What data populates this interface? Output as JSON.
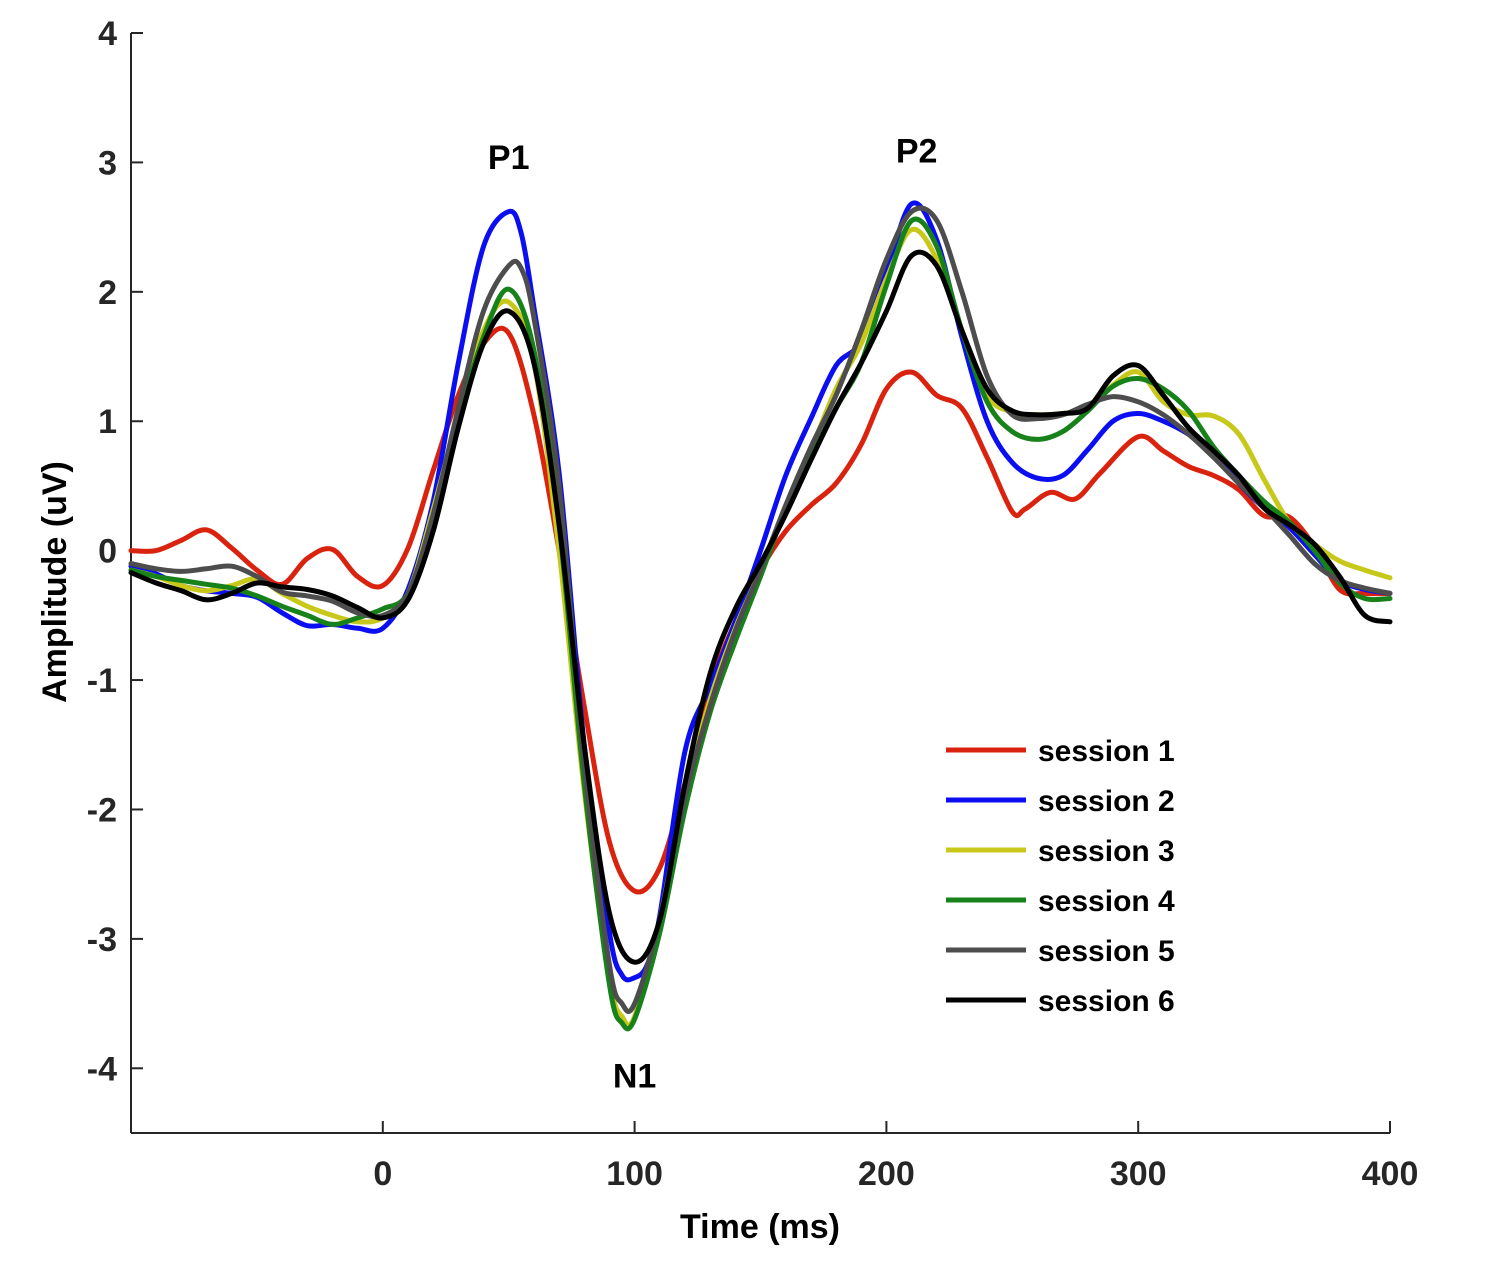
{
  "chart_data": {
    "type": "line",
    "xlabel": "Time (ms)",
    "ylabel": "Amplitude (uV)",
    "xlim": [
      -100,
      400
    ],
    "ylim": [
      -4.5,
      4
    ],
    "x_ticks": [
      0,
      100,
      200,
      300,
      400
    ],
    "y_ticks": [
      -4,
      -3,
      -2,
      -1,
      0,
      1,
      2,
      3,
      4
    ],
    "grid": false,
    "legend_position": "bottom-right",
    "annotations": [
      {
        "text": "P1",
        "x": 50,
        "y": 2.95
      },
      {
        "text": "P2",
        "x": 212,
        "y": 3.0
      },
      {
        "text": "N1",
        "x": 100,
        "y": -4.15
      }
    ],
    "series": [
      {
        "name": "session 1",
        "color": "#d9230f",
        "points": [
          [
            -100,
            0
          ],
          [
            -90,
            0
          ],
          [
            -80,
            0.08
          ],
          [
            -70,
            0.16
          ],
          [
            -60,
            0.02
          ],
          [
            -50,
            -0.15
          ],
          [
            -40,
            -0.26
          ],
          [
            -30,
            -0.06
          ],
          [
            -20,
            0.01
          ],
          [
            -10,
            -0.2
          ],
          [
            0,
            -0.27
          ],
          [
            10,
            0.02
          ],
          [
            20,
            0.62
          ],
          [
            30,
            1.2
          ],
          [
            40,
            1.6
          ],
          [
            50,
            1.68
          ],
          [
            60,
            1.05
          ],
          [
            70,
            0.0
          ],
          [
            80,
            -1.2
          ],
          [
            90,
            -2.25
          ],
          [
            100,
            -2.63
          ],
          [
            110,
            -2.45
          ],
          [
            120,
            -1.8
          ],
          [
            130,
            -1.05
          ],
          [
            140,
            -0.55
          ],
          [
            150,
            -0.15
          ],
          [
            160,
            0.15
          ],
          [
            170,
            0.35
          ],
          [
            180,
            0.52
          ],
          [
            190,
            0.82
          ],
          [
            200,
            1.25
          ],
          [
            210,
            1.38
          ],
          [
            220,
            1.2
          ],
          [
            230,
            1.1
          ],
          [
            240,
            0.72
          ],
          [
            250,
            0.3
          ],
          [
            255,
            0.32
          ],
          [
            265,
            0.45
          ],
          [
            275,
            0.4
          ],
          [
            285,
            0.6
          ],
          [
            300,
            0.88
          ],
          [
            310,
            0.77
          ],
          [
            320,
            0.65
          ],
          [
            330,
            0.58
          ],
          [
            340,
            0.47
          ],
          [
            350,
            0.27
          ],
          [
            360,
            0.26
          ],
          [
            370,
            0.03
          ],
          [
            380,
            -0.3
          ],
          [
            390,
            -0.33
          ],
          [
            400,
            -0.33
          ]
        ]
      },
      {
        "name": "session 2",
        "color": "#0b0ef0",
        "points": [
          [
            -100,
            -0.12
          ],
          [
            -90,
            -0.18
          ],
          [
            -80,
            -0.27
          ],
          [
            -70,
            -0.31
          ],
          [
            -60,
            -0.33
          ],
          [
            -50,
            -0.36
          ],
          [
            -40,
            -0.48
          ],
          [
            -30,
            -0.58
          ],
          [
            -20,
            -0.57
          ],
          [
            -10,
            -0.6
          ],
          [
            0,
            -0.6
          ],
          [
            10,
            -0.3
          ],
          [
            20,
            0.38
          ],
          [
            30,
            1.45
          ],
          [
            40,
            2.35
          ],
          [
            50,
            2.62
          ],
          [
            55,
            2.45
          ],
          [
            60,
            1.88
          ],
          [
            70,
            0.6
          ],
          [
            80,
            -1.5
          ],
          [
            90,
            -2.95
          ],
          [
            95,
            -3.28
          ],
          [
            100,
            -3.3
          ],
          [
            105,
            -3.2
          ],
          [
            110,
            -2.82
          ],
          [
            120,
            -1.55
          ],
          [
            130,
            -1.05
          ],
          [
            140,
            -0.55
          ],
          [
            150,
            0.0
          ],
          [
            160,
            0.58
          ],
          [
            170,
            1.02
          ],
          [
            180,
            1.43
          ],
          [
            190,
            1.62
          ],
          [
            200,
            2.15
          ],
          [
            210,
            2.68
          ],
          [
            220,
            2.4
          ],
          [
            230,
            1.65
          ],
          [
            240,
            1.0
          ],
          [
            250,
            0.68
          ],
          [
            260,
            0.56
          ],
          [
            270,
            0.58
          ],
          [
            280,
            0.78
          ],
          [
            290,
            1.0
          ],
          [
            300,
            1.06
          ],
          [
            310,
            1.0
          ],
          [
            320,
            0.9
          ],
          [
            330,
            0.76
          ],
          [
            340,
            0.52
          ],
          [
            350,
            0.33
          ],
          [
            360,
            0.18
          ],
          [
            370,
            -0.03
          ],
          [
            380,
            -0.23
          ],
          [
            390,
            -0.3
          ],
          [
            400,
            -0.33
          ]
        ]
      },
      {
        "name": "session 3",
        "color": "#c8c81a",
        "points": [
          [
            -100,
            -0.15
          ],
          [
            -90,
            -0.2
          ],
          [
            -80,
            -0.27
          ],
          [
            -70,
            -0.31
          ],
          [
            -60,
            -0.27
          ],
          [
            -50,
            -0.22
          ],
          [
            -40,
            -0.33
          ],
          [
            -30,
            -0.43
          ],
          [
            -20,
            -0.5
          ],
          [
            -10,
            -0.55
          ],
          [
            0,
            -0.52
          ],
          [
            10,
            -0.33
          ],
          [
            20,
            0.32
          ],
          [
            30,
            1.05
          ],
          [
            40,
            1.7
          ],
          [
            50,
            1.92
          ],
          [
            60,
            1.45
          ],
          [
            70,
            0.0
          ],
          [
            80,
            -1.85
          ],
          [
            90,
            -3.3
          ],
          [
            95,
            -3.6
          ],
          [
            100,
            -3.6
          ],
          [
            110,
            -2.85
          ],
          [
            120,
            -1.88
          ],
          [
            130,
            -1.15
          ],
          [
            140,
            -0.6
          ],
          [
            150,
            -0.15
          ],
          [
            160,
            0.35
          ],
          [
            170,
            0.78
          ],
          [
            180,
            1.25
          ],
          [
            190,
            1.6
          ],
          [
            200,
            2.1
          ],
          [
            210,
            2.48
          ],
          [
            220,
            2.25
          ],
          [
            230,
            1.7
          ],
          [
            240,
            1.2
          ],
          [
            250,
            1.07
          ],
          [
            260,
            1.05
          ],
          [
            270,
            1.06
          ],
          [
            280,
            1.1
          ],
          [
            290,
            1.28
          ],
          [
            300,
            1.38
          ],
          [
            310,
            1.15
          ],
          [
            320,
            1.05
          ],
          [
            330,
            1.04
          ],
          [
            340,
            0.9
          ],
          [
            350,
            0.55
          ],
          [
            360,
            0.22
          ],
          [
            370,
            0.05
          ],
          [
            380,
            -0.08
          ],
          [
            390,
            -0.15
          ],
          [
            400,
            -0.21
          ]
        ]
      },
      {
        "name": "session 4",
        "color": "#17821a",
        "points": [
          [
            -100,
            -0.15
          ],
          [
            -90,
            -0.2
          ],
          [
            -80,
            -0.23
          ],
          [
            -70,
            -0.26
          ],
          [
            -60,
            -0.29
          ],
          [
            -50,
            -0.35
          ],
          [
            -40,
            -0.43
          ],
          [
            -30,
            -0.5
          ],
          [
            -20,
            -0.57
          ],
          [
            -10,
            -0.52
          ],
          [
            0,
            -0.45
          ],
          [
            10,
            -0.33
          ],
          [
            20,
            0.2
          ],
          [
            30,
            1.0
          ],
          [
            40,
            1.65
          ],
          [
            50,
            2.02
          ],
          [
            60,
            1.55
          ],
          [
            70,
            0.2
          ],
          [
            80,
            -1.8
          ],
          [
            90,
            -3.35
          ],
          [
            95,
            -3.65
          ],
          [
            100,
            -3.62
          ],
          [
            110,
            -2.95
          ],
          [
            120,
            -2.0
          ],
          [
            130,
            -1.25
          ],
          [
            140,
            -0.7
          ],
          [
            150,
            -0.2
          ],
          [
            160,
            0.32
          ],
          [
            170,
            0.72
          ],
          [
            180,
            1.1
          ],
          [
            190,
            1.45
          ],
          [
            200,
            2.05
          ],
          [
            210,
            2.55
          ],
          [
            220,
            2.35
          ],
          [
            230,
            1.7
          ],
          [
            240,
            1.15
          ],
          [
            250,
            0.92
          ],
          [
            260,
            0.86
          ],
          [
            270,
            0.92
          ],
          [
            280,
            1.08
          ],
          [
            290,
            1.27
          ],
          [
            300,
            1.33
          ],
          [
            310,
            1.25
          ],
          [
            320,
            1.08
          ],
          [
            330,
            0.8
          ],
          [
            340,
            0.58
          ],
          [
            350,
            0.38
          ],
          [
            360,
            0.22
          ],
          [
            370,
            0.0
          ],
          [
            380,
            -0.25
          ],
          [
            390,
            -0.37
          ],
          [
            400,
            -0.37
          ]
        ]
      },
      {
        "name": "session 5",
        "color": "#4d4d4d",
        "points": [
          [
            -100,
            -0.1
          ],
          [
            -90,
            -0.14
          ],
          [
            -80,
            -0.16
          ],
          [
            -70,
            -0.14
          ],
          [
            -60,
            -0.12
          ],
          [
            -50,
            -0.2
          ],
          [
            -40,
            -0.32
          ],
          [
            -30,
            -0.35
          ],
          [
            -20,
            -0.39
          ],
          [
            -10,
            -0.48
          ],
          [
            0,
            -0.5
          ],
          [
            10,
            -0.33
          ],
          [
            20,
            0.28
          ],
          [
            30,
            1.1
          ],
          [
            40,
            1.85
          ],
          [
            50,
            2.2
          ],
          [
            55,
            2.18
          ],
          [
            60,
            1.8
          ],
          [
            70,
            0.5
          ],
          [
            80,
            -1.65
          ],
          [
            90,
            -3.2
          ],
          [
            95,
            -3.5
          ],
          [
            100,
            -3.5
          ],
          [
            110,
            -2.85
          ],
          [
            120,
            -1.9
          ],
          [
            130,
            -1.2
          ],
          [
            140,
            -0.62
          ],
          [
            150,
            -0.15
          ],
          [
            160,
            0.35
          ],
          [
            170,
            0.8
          ],
          [
            180,
            1.2
          ],
          [
            190,
            1.7
          ],
          [
            200,
            2.25
          ],
          [
            210,
            2.62
          ],
          [
            220,
            2.55
          ],
          [
            230,
            2.0
          ],
          [
            240,
            1.35
          ],
          [
            250,
            1.05
          ],
          [
            260,
            1.02
          ],
          [
            270,
            1.05
          ],
          [
            280,
            1.13
          ],
          [
            290,
            1.19
          ],
          [
            300,
            1.15
          ],
          [
            310,
            1.05
          ],
          [
            320,
            0.9
          ],
          [
            330,
            0.72
          ],
          [
            340,
            0.52
          ],
          [
            350,
            0.33
          ],
          [
            360,
            0.12
          ],
          [
            370,
            -0.1
          ],
          [
            380,
            -0.23
          ],
          [
            390,
            -0.29
          ],
          [
            400,
            -0.33
          ]
        ]
      },
      {
        "name": "session 6",
        "color": "#000000",
        "points": [
          [
            -100,
            -0.17
          ],
          [
            -90,
            -0.25
          ],
          [
            -80,
            -0.31
          ],
          [
            -70,
            -0.38
          ],
          [
            -60,
            -0.33
          ],
          [
            -50,
            -0.25
          ],
          [
            -40,
            -0.28
          ],
          [
            -30,
            -0.3
          ],
          [
            -20,
            -0.35
          ],
          [
            -10,
            -0.44
          ],
          [
            0,
            -0.52
          ],
          [
            10,
            -0.38
          ],
          [
            20,
            0.15
          ],
          [
            30,
            0.95
          ],
          [
            40,
            1.6
          ],
          [
            50,
            1.85
          ],
          [
            60,
            1.45
          ],
          [
            70,
            0.2
          ],
          [
            80,
            -1.5
          ],
          [
            90,
            -2.8
          ],
          [
            100,
            -3.18
          ],
          [
            110,
            -2.85
          ],
          [
            120,
            -1.8
          ],
          [
            130,
            -0.95
          ],
          [
            140,
            -0.45
          ],
          [
            150,
            -0.1
          ],
          [
            160,
            0.28
          ],
          [
            170,
            0.7
          ],
          [
            180,
            1.1
          ],
          [
            190,
            1.45
          ],
          [
            200,
            1.85
          ],
          [
            210,
            2.28
          ],
          [
            220,
            2.2
          ],
          [
            230,
            1.7
          ],
          [
            240,
            1.25
          ],
          [
            250,
            1.08
          ],
          [
            260,
            1.05
          ],
          [
            270,
            1.06
          ],
          [
            280,
            1.1
          ],
          [
            290,
            1.35
          ],
          [
            300,
            1.43
          ],
          [
            310,
            1.2
          ],
          [
            320,
            0.95
          ],
          [
            330,
            0.77
          ],
          [
            340,
            0.58
          ],
          [
            350,
            0.33
          ],
          [
            360,
            0.2
          ],
          [
            370,
            0.05
          ],
          [
            380,
            -0.2
          ],
          [
            390,
            -0.5
          ],
          [
            400,
            -0.55
          ]
        ]
      }
    ]
  }
}
